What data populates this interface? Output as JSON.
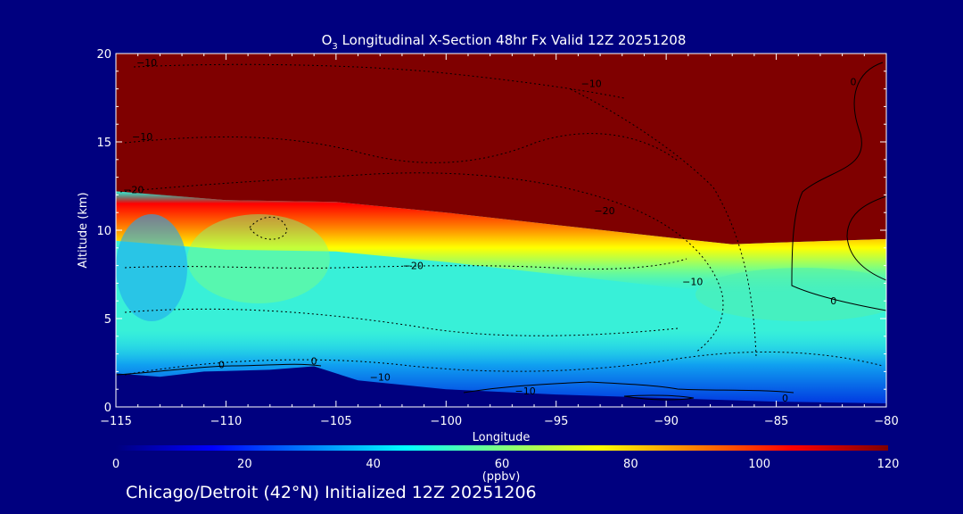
{
  "chart_data": {
    "type": "contour-section",
    "title_prefix": "O",
    "title_subscript": "3",
    "title_rest": " Longitudinal X-Section 48hr  Fx Valid 12Z 20251208",
    "xlabel": "Longitude",
    "ylabel": "Altitude (km)",
    "xlim": [
      -115,
      -80
    ],
    "ylim": [
      0,
      20
    ],
    "x_ticks": [
      -115,
      -110,
      -105,
      -100,
      -95,
      -90,
      -85,
      -80
    ],
    "x_tick_labels": [
      "−115",
      "−110",
      "−105",
      "−100",
      "−95",
      "−90",
      "−85",
      "−80"
    ],
    "y_ticks": [
      0,
      5,
      10,
      15,
      20
    ],
    "y_tick_labels": [
      "0",
      "5",
      "10",
      "15",
      "20"
    ],
    "colorbar": {
      "min": 0,
      "max": 120,
      "ticks": [
        0,
        20,
        40,
        60,
        80,
        100,
        120
      ],
      "tick_labels": [
        "0",
        "20",
        "40",
        "60",
        "80",
        "100",
        "120"
      ],
      "unit_label": "(ppbv)"
    },
    "tropopause_km": [
      [
        -115,
        12.2
      ],
      [
        -110,
        11.7
      ],
      [
        -105,
        11.6
      ],
      [
        -100,
        11.0
      ],
      [
        -95,
        10.3
      ],
      [
        -90,
        9.6
      ],
      [
        -87,
        9.2
      ],
      [
        -85,
        9.3
      ],
      [
        -80,
        9.5
      ]
    ],
    "terrain_km": [
      [
        -115,
        1.9
      ],
      [
        -113,
        1.7
      ],
      [
        -111,
        2.0
      ],
      [
        -108,
        2.1
      ],
      [
        -106,
        2.3
      ],
      [
        -104,
        1.5
      ],
      [
        -100,
        1.0
      ],
      [
        -95,
        0.7
      ],
      [
        -90,
        0.5
      ],
      [
        -85,
        0.3
      ],
      [
        -80,
        0.2
      ]
    ],
    "contour_labels": [
      {
        "text": "−10",
        "lon": -113.6,
        "alt": 19.3
      },
      {
        "text": "−10",
        "lon": -93.4,
        "alt": 18.1
      },
      {
        "text": "−10",
        "lon": -113.8,
        "alt": 15.1
      },
      {
        "text": "0",
        "lon": -81.5,
        "alt": 18.2
      },
      {
        "text": "−20",
        "lon": -114.2,
        "alt": 12.1
      },
      {
        "text": "−20",
        "lon": -92.8,
        "alt": 10.9
      },
      {
        "text": "−20",
        "lon": -101.5,
        "alt": 7.8
      },
      {
        "text": "−10",
        "lon": -88.8,
        "alt": 6.9
      },
      {
        "text": "0",
        "lon": -82.4,
        "alt": 5.8
      },
      {
        "text": "0",
        "lon": -110.2,
        "alt": 2.2
      },
      {
        "text": "0",
        "lon": -106.0,
        "alt": 2.4
      },
      {
        "text": "−10",
        "lon": -103.0,
        "alt": 1.5
      },
      {
        "text": "−10",
        "lon": -96.4,
        "alt": 0.7
      },
      {
        "text": "0",
        "lon": -84.6,
        "alt": 0.3
      }
    ]
  },
  "footer_text": "Chicago/Detroit (42°N) Initialized 12Z 20251206"
}
